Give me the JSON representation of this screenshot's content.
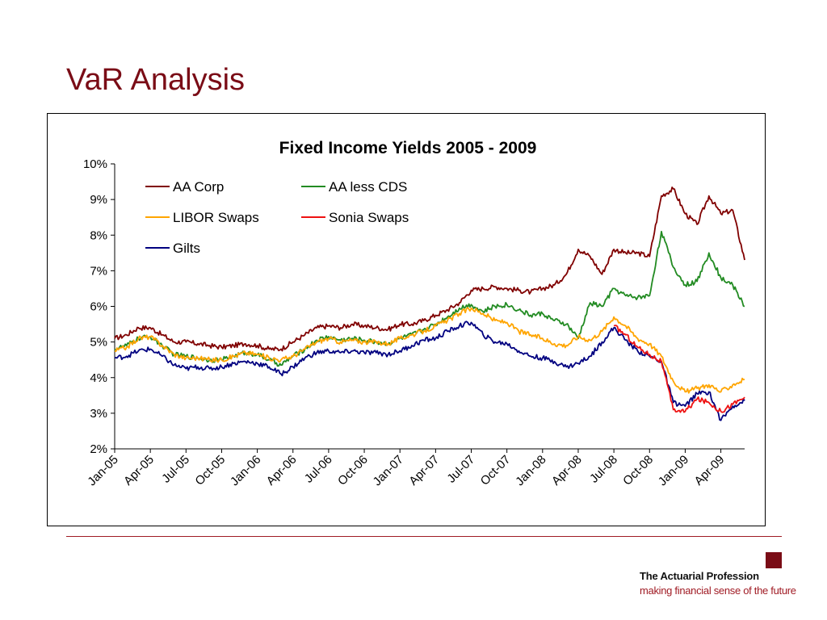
{
  "slide": {
    "title": "VaR Analysis"
  },
  "footer": {
    "org_name": "The Actuarial Profession",
    "tagline": "making financial sense of the future",
    "accent_color": "#7a0c16"
  },
  "chart_data": {
    "type": "line",
    "title": "Fixed Income Yields 2005 - 2009",
    "xlabel": "",
    "ylabel": "",
    "ylim": [
      2,
      10
    ],
    "y_ticks": [
      2,
      3,
      4,
      5,
      6,
      7,
      8,
      9,
      10
    ],
    "y_tick_labels": [
      "2%",
      "3%",
      "4%",
      "5%",
      "6%",
      "7%",
      "8%",
      "9%",
      "10%"
    ],
    "x_tick_labels": [
      "Jan-05",
      "Apr-05",
      "Jul-05",
      "Oct-05",
      "Jan-06",
      "Apr-06",
      "Jul-06",
      "Oct-06",
      "Jan-07",
      "Apr-07",
      "Jul-07",
      "Oct-07",
      "Jan-08",
      "Apr-08",
      "Jul-08",
      "Oct-08",
      "Jan-09",
      "Apr-09"
    ],
    "x_range": [
      "Jan-05",
      "Jun-09"
    ],
    "legend": {
      "position": "top-left",
      "columns": 2
    },
    "grid": false,
    "x": [
      "Jan-05",
      "Feb-05",
      "Mar-05",
      "Apr-05",
      "May-05",
      "Jun-05",
      "Jul-05",
      "Aug-05",
      "Sep-05",
      "Oct-05",
      "Nov-05",
      "Dec-05",
      "Jan-06",
      "Feb-06",
      "Mar-06",
      "Apr-06",
      "May-06",
      "Jun-06",
      "Jul-06",
      "Aug-06",
      "Sep-06",
      "Oct-06",
      "Nov-06",
      "Dec-06",
      "Jan-07",
      "Feb-07",
      "Mar-07",
      "Apr-07",
      "May-07",
      "Jun-07",
      "Jul-07",
      "Aug-07",
      "Sep-07",
      "Oct-07",
      "Nov-07",
      "Dec-07",
      "Jan-08",
      "Feb-08",
      "Mar-08",
      "Apr-08",
      "May-08",
      "Jun-08",
      "Jul-08",
      "Aug-08",
      "Sep-08",
      "Oct-08",
      "Nov-08",
      "Dec-08",
      "Jan-09",
      "Feb-09",
      "Mar-09",
      "Apr-09",
      "May-09",
      "Jun-09"
    ],
    "series": [
      {
        "name": "AA Corp",
        "color": "#800000",
        "values": [
          5.1,
          5.2,
          5.4,
          5.4,
          5.2,
          5.0,
          5.0,
          4.95,
          4.9,
          4.85,
          4.9,
          4.95,
          4.9,
          4.8,
          4.8,
          5.0,
          5.2,
          5.4,
          5.45,
          5.4,
          5.5,
          5.45,
          5.4,
          5.35,
          5.5,
          5.5,
          5.6,
          5.75,
          5.9,
          6.1,
          6.45,
          6.5,
          6.55,
          6.5,
          6.45,
          6.4,
          6.5,
          6.6,
          6.9,
          7.6,
          7.4,
          6.9,
          7.6,
          7.5,
          7.5,
          7.4,
          9.1,
          9.3,
          8.6,
          8.3,
          9.1,
          8.6,
          8.7,
          7.3
        ]
      },
      {
        "name": "AA less CDS",
        "color": "#228b22",
        "values": [
          4.8,
          4.9,
          5.1,
          5.15,
          4.9,
          4.65,
          4.6,
          4.55,
          4.5,
          4.5,
          4.6,
          4.7,
          4.65,
          4.5,
          4.35,
          4.6,
          4.8,
          5.05,
          5.15,
          5.05,
          5.1,
          5.05,
          5.0,
          4.95,
          5.1,
          5.2,
          5.35,
          5.5,
          5.7,
          5.95,
          6.05,
          5.85,
          6.0,
          6.05,
          5.9,
          5.75,
          5.8,
          5.6,
          5.5,
          5.1,
          6.1,
          6.0,
          6.5,
          6.3,
          6.25,
          6.3,
          8.1,
          7.1,
          6.6,
          6.7,
          7.5,
          6.8,
          6.6,
          6.0
        ]
      },
      {
        "name": "LIBOR Swaps",
        "color": "#ffa500",
        "values": [
          4.75,
          4.85,
          5.1,
          5.15,
          4.9,
          4.65,
          4.55,
          4.55,
          4.5,
          4.5,
          4.6,
          4.7,
          4.65,
          4.55,
          4.5,
          4.6,
          4.8,
          5.0,
          5.1,
          5.0,
          5.05,
          5.0,
          5.0,
          4.95,
          5.1,
          5.2,
          5.3,
          5.45,
          5.6,
          5.8,
          5.95,
          5.8,
          5.6,
          5.55,
          5.3,
          5.2,
          5.1,
          4.95,
          4.9,
          5.15,
          5.05,
          5.3,
          5.7,
          5.45,
          5.1,
          4.95,
          4.6,
          3.9,
          3.6,
          3.7,
          3.8,
          3.6,
          3.8,
          3.95
        ]
      },
      {
        "name": "Sonia Swaps",
        "color": "#ee1111",
        "values": [
          null,
          null,
          null,
          null,
          null,
          null,
          null,
          null,
          null,
          null,
          null,
          null,
          null,
          null,
          null,
          null,
          null,
          null,
          null,
          null,
          null,
          null,
          null,
          null,
          null,
          null,
          null,
          null,
          null,
          null,
          null,
          null,
          null,
          null,
          null,
          null,
          null,
          null,
          null,
          null,
          null,
          null,
          5.45,
          5.2,
          4.85,
          4.65,
          4.45,
          3.1,
          3.05,
          3.4,
          3.3,
          3.05,
          3.25,
          3.45
        ]
      },
      {
        "name": "Gilts",
        "color": "#000080",
        "values": [
          4.55,
          4.6,
          4.75,
          4.8,
          4.6,
          4.35,
          4.25,
          4.3,
          4.25,
          4.3,
          4.4,
          4.45,
          4.4,
          4.3,
          4.1,
          4.3,
          4.55,
          4.7,
          4.75,
          4.7,
          4.75,
          4.7,
          4.7,
          4.65,
          4.75,
          4.9,
          5.05,
          5.1,
          5.3,
          5.45,
          5.55,
          5.2,
          5.0,
          4.95,
          4.75,
          4.6,
          4.55,
          4.45,
          4.3,
          4.4,
          4.6,
          5.0,
          5.4,
          5.05,
          4.75,
          4.6,
          4.45,
          3.3,
          3.2,
          3.55,
          3.6,
          2.8,
          3.2,
          3.35
        ]
      }
    ]
  }
}
